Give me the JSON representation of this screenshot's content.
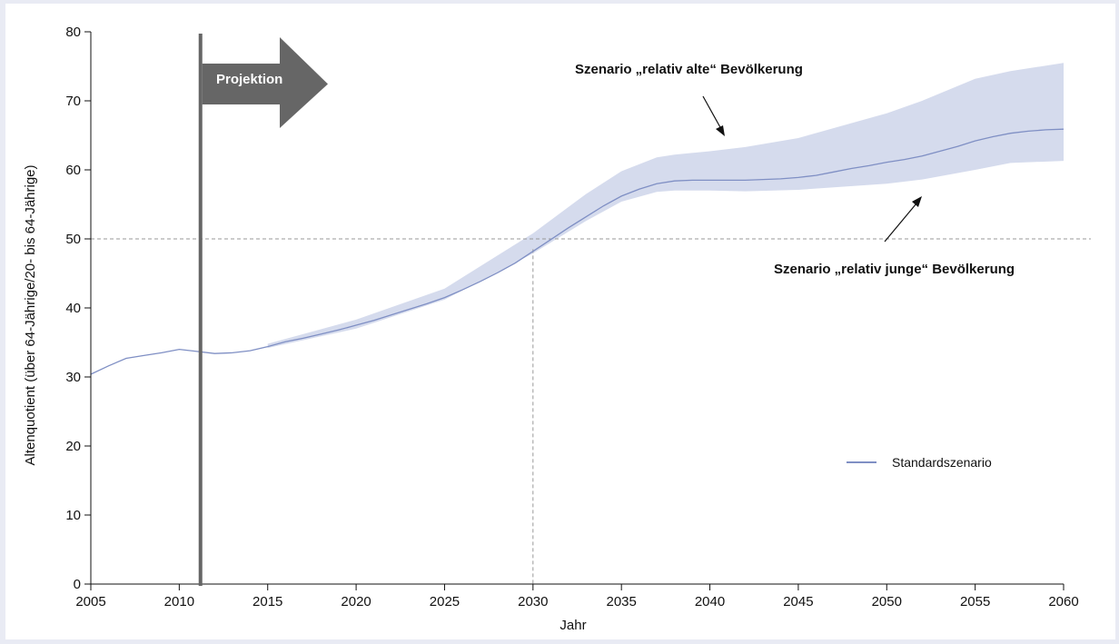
{
  "chart_data": {
    "type": "line",
    "title": "",
    "xlabel": "Jahr",
    "ylabel": "Altenquotient (über 64-Jährige/20- bis 64-Jährige)",
    "xlim": [
      2005,
      2060
    ],
    "ylim": [
      0,
      80
    ],
    "x_ticks": [
      "2005",
      "2010",
      "2015",
      "2020",
      "2025",
      "2030",
      "2035",
      "2040",
      "2045",
      "2050",
      "2055",
      "2060"
    ],
    "y_ticks": [
      "0",
      "10",
      "20",
      "30",
      "40",
      "50",
      "60",
      "70",
      "80"
    ],
    "grid": false,
    "legend": {
      "placement": "bottom-right",
      "entries": [
        "Standardszenario"
      ]
    },
    "colors": {
      "line": "#7f8fc4",
      "band": "#d5dbed",
      "projection": "#666666"
    },
    "series": [
      {
        "name": "Standardszenario",
        "x": [
          2005,
          2006,
          2007,
          2008,
          2009,
          2010,
          2011,
          2012,
          2013,
          2014,
          2015,
          2016,
          2017,
          2018,
          2019,
          2020,
          2021,
          2022,
          2023,
          2024,
          2025,
          2026,
          2027,
          2028,
          2029,
          2030,
          2031,
          2032,
          2033,
          2034,
          2035,
          2036,
          2037,
          2038,
          2039,
          2040,
          2041,
          2042,
          2043,
          2044,
          2045,
          2046,
          2047,
          2048,
          2049,
          2050,
          2051,
          2052,
          2053,
          2054,
          2055,
          2056,
          2057,
          2058,
          2059,
          2060
        ],
        "values": [
          30.4,
          31.6,
          32.7,
          33.1,
          33.5,
          34.0,
          33.7,
          33.4,
          33.5,
          33.8,
          34.4,
          35.1,
          35.6,
          36.2,
          36.8,
          37.5,
          38.2,
          39.0,
          39.8,
          40.6,
          41.5,
          42.6,
          43.8,
          45.1,
          46.5,
          48.2,
          49.9,
          51.6,
          53.2,
          54.8,
          56.2,
          57.2,
          58.0,
          58.4,
          58.5,
          58.5,
          58.5,
          58.5,
          58.6,
          58.7,
          58.9,
          59.2,
          59.7,
          60.2,
          60.6,
          61.1,
          61.5,
          62.0,
          62.7,
          63.4,
          64.2,
          64.8,
          65.3,
          65.6,
          65.8,
          65.9
        ]
      }
    ],
    "band": {
      "x": [
        2015,
        2020,
        2025,
        2030,
        2033,
        2035,
        2037,
        2038,
        2040,
        2042,
        2045,
        2050,
        2052,
        2055,
        2057,
        2060
      ],
      "upper": [
        34.8,
        38.3,
        42.8,
        50.8,
        56.5,
        59.8,
        61.8,
        62.2,
        62.7,
        63.3,
        64.6,
        68.2,
        70.0,
        73.2,
        74.3,
        75.5
      ],
      "lower": [
        34.2,
        37.0,
        41.2,
        47.9,
        52.6,
        55.4,
        56.8,
        57.0,
        57.0,
        56.9,
        57.1,
        58.0,
        58.6,
        60.0,
        61.0,
        61.3
      ]
    },
    "projection_start": 2011.2,
    "projection_label": "Projektion",
    "reference_lines": {
      "y": 50,
      "x": 2030
    },
    "annotations": {
      "upper": "Szenario „relativ alte“ Bevölkerung",
      "lower": "Szenario „relativ junge“ Bevölkerung"
    }
  }
}
